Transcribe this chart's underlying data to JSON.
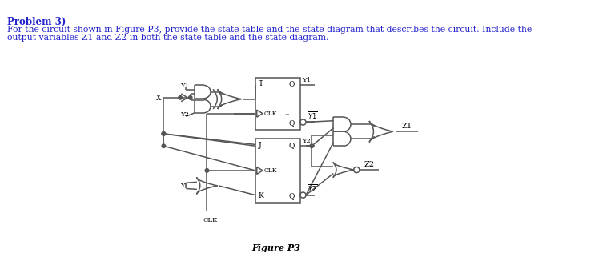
{
  "title_line1": "Problem 3)",
  "title_line2": "For the circuit shown in Figure P3, provide the state table and the state diagram that describes the circuit. Include the",
  "title_line3": "output variables Z1 and Z2 in both the state table and the state diagram.",
  "figure_caption": "Figure P3",
  "bg_color": "#ffffff",
  "text_color": "#000000",
  "title_color": "#2222cc",
  "gate_color": "#555555",
  "lw": 1.1,
  "glw": 1.1
}
